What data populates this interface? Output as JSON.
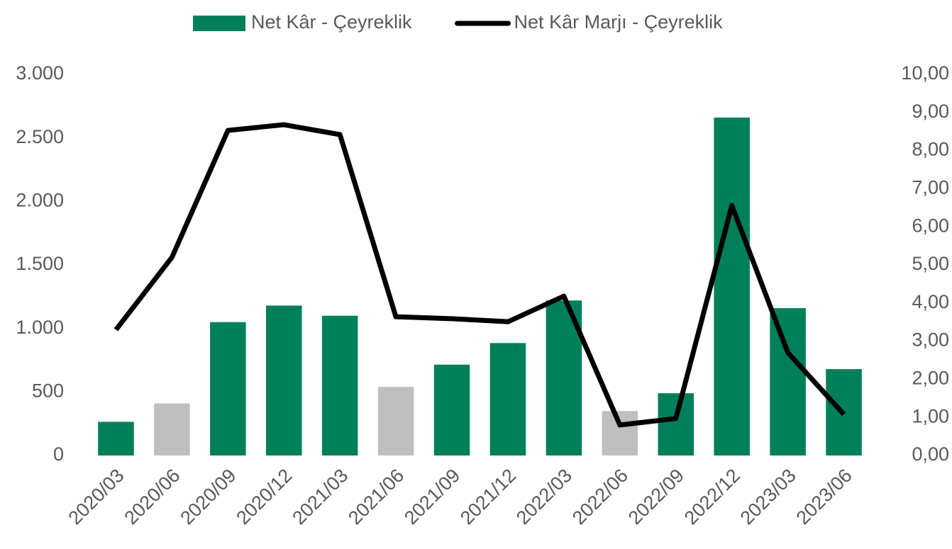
{
  "chart_data": {
    "type": "bar_line",
    "categories": [
      "2020/03",
      "2020/06",
      "2020/09",
      "2020/12",
      "2021/03",
      "2021/06",
      "2021/09",
      "2021/12",
      "2022/03",
      "2022/06",
      "2022/09",
      "2022/12",
      "2023/03",
      "2023/06"
    ],
    "series": [
      {
        "name": "Net Kâr - Çeyreklik",
        "type": "bar",
        "color": "#00805a",
        "colors": [
          "#00805a",
          "#bfbfbf",
          "#00805a",
          "#00805a",
          "#00805a",
          "#bfbfbf",
          "#00805a",
          "#00805a",
          "#00805a",
          "#bfbfbf",
          "#00805a",
          "#00805a",
          "#00805a",
          "#00805a"
        ],
        "values": [
          265,
          410,
          1050,
          1180,
          1100,
          540,
          715,
          885,
          1220,
          350,
          490,
          2660,
          1160,
          680
        ]
      },
      {
        "name": "Net Kâr Marjı - Çeyreklik",
        "type": "line",
        "axis": "y2",
        "color": "#000000",
        "values": [
          3.3,
          5.2,
          8.53,
          8.68,
          8.42,
          3.64,
          3.59,
          3.51,
          4.18,
          0.8,
          0.97,
          6.56,
          2.7,
          1.08
        ]
      }
    ],
    "ylim": [
      0,
      3000
    ],
    "yticks": [
      0,
      {
        "value": 500,
        "label": "500"
      },
      {
        "value": 1000,
        "label": "1.000"
      },
      {
        "value": 1500,
        "label": "1.500"
      },
      {
        "value": 2000,
        "label": "2.000"
      },
      {
        "value": 2500,
        "label": "2.500"
      },
      {
        "value": 3000,
        "label": "3.000"
      }
    ],
    "y2lim": [
      0,
      10
    ],
    "y2ticks": [
      {
        "value": 0,
        "label": "0,00"
      },
      {
        "value": 1,
        "label": "1,00"
      },
      {
        "value": 2,
        "label": "2,00"
      },
      {
        "value": 3,
        "label": "3,00"
      },
      {
        "value": 4,
        "label": "4,00"
      },
      {
        "value": 5,
        "label": "5,00"
      },
      {
        "value": 6,
        "label": "6,00"
      },
      {
        "value": 7,
        "label": "7,00"
      },
      {
        "value": 8,
        "label": "8,00"
      },
      {
        "value": 9,
        "label": "9,00"
      },
      {
        "value": 10,
        "label": "10,00"
      }
    ],
    "grid": false,
    "legend": "top"
  }
}
